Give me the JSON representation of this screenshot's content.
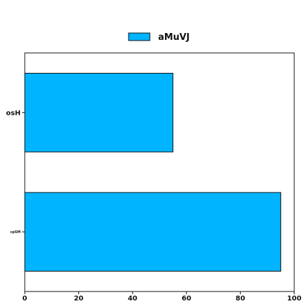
{
  "chart_data": {
    "type": "bar",
    "orientation": "horizontal",
    "categories": [
      "osH",
      "cpSM"
    ],
    "series": [
      {
        "name": "aMuVJ",
        "values": [
          55,
          95
        ],
        "color": "#00b4ff"
      }
    ],
    "xlim": [
      0,
      100
    ],
    "xticks": [
      0,
      20,
      40,
      60,
      80,
      100
    ],
    "grid": false,
    "legend_position": "top-center",
    "bar_edge_color": "#111111",
    "axis_color": "#111111"
  }
}
